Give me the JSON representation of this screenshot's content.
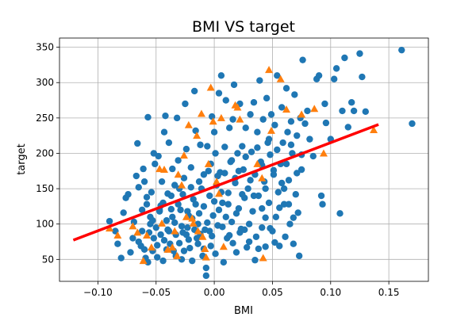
{
  "chart_data": {
    "type": "scatter",
    "title": "BMI VS target",
    "xlabel": "BMI",
    "ylabel": "target",
    "xlim": [
      -0.133,
      0.184
    ],
    "ylim": [
      19,
      363
    ],
    "xticks": [
      -0.1,
      -0.05,
      0.0,
      0.05,
      0.1,
      0.15
    ],
    "xtick_labels": [
      "−0.10",
      "−0.05",
      "0.00",
      "0.05",
      "0.10",
      "0.15"
    ],
    "yticks": [
      50,
      100,
      150,
      200,
      250,
      300,
      350
    ],
    "ytick_labels": [
      "50",
      "100",
      "150",
      "200",
      "250",
      "300",
      "350"
    ],
    "grid": true,
    "series": [
      {
        "marker": "circle",
        "color": "#1f77b4",
        "points": [
          [
            -0.09,
            104
          ],
          [
            -0.085,
            90
          ],
          [
            -0.083,
            72
          ],
          [
            -0.08,
            52
          ],
          [
            -0.078,
            116
          ],
          [
            -0.076,
            137
          ],
          [
            -0.074,
            142
          ],
          [
            -0.072,
            60
          ],
          [
            -0.07,
            80
          ],
          [
            -0.069,
            103
          ],
          [
            -0.067,
            168
          ],
          [
            -0.066,
            214
          ],
          [
            -0.065,
            152
          ],
          [
            -0.063,
            69
          ],
          [
            -0.062,
            90
          ],
          [
            -0.061,
            178
          ],
          [
            -0.06,
            160
          ],
          [
            -0.059,
            52
          ],
          [
            -0.058,
            128
          ],
          [
            -0.057,
            251
          ],
          [
            -0.056,
            88
          ],
          [
            -0.055,
            110
          ],
          [
            -0.054,
            145
          ],
          [
            -0.053,
            62
          ],
          [
            -0.052,
            200
          ],
          [
            -0.051,
            185
          ],
          [
            -0.05,
            95
          ],
          [
            -0.049,
            70
          ],
          [
            -0.048,
            196
          ],
          [
            -0.047,
            120
          ],
          [
            -0.046,
            85
          ],
          [
            -0.045,
            160
          ],
          [
            -0.044,
            48
          ],
          [
            -0.043,
            230
          ],
          [
            -0.042,
            253
          ],
          [
            -0.041,
            105
          ],
          [
            -0.04,
            92
          ],
          [
            -0.039,
            215
          ],
          [
            -0.038,
            72
          ],
          [
            -0.037,
            140
          ],
          [
            -0.036,
            178
          ],
          [
            -0.035,
            62
          ],
          [
            -0.034,
            102
          ],
          [
            -0.033,
            85
          ],
          [
            -0.032,
            250
          ],
          [
            -0.031,
            190
          ],
          [
            -0.03,
            150
          ],
          [
            -0.029,
            120
          ],
          [
            -0.028,
            50
          ],
          [
            -0.027,
            88
          ],
          [
            -0.026,
            165
          ],
          [
            -0.025,
            270
          ],
          [
            -0.024,
            206
          ],
          [
            -0.023,
            95
          ],
          [
            -0.022,
            112
          ],
          [
            -0.021,
            66
          ],
          [
            -0.02,
            180
          ],
          [
            -0.019,
            48
          ],
          [
            -0.018,
            135
          ],
          [
            -0.017,
            288
          ],
          [
            -0.016,
            232
          ],
          [
            -0.015,
            80
          ],
          [
            -0.014,
            100
          ],
          [
            -0.013,
            160
          ],
          [
            -0.012,
            212
          ],
          [
            -0.011,
            150
          ],
          [
            -0.01,
            55
          ],
          [
            -0.009,
            125
          ],
          [
            -0.008,
            92
          ],
          [
            -0.007,
            27
          ],
          [
            -0.006,
            210
          ],
          [
            -0.005,
            175
          ],
          [
            -0.004,
            140
          ],
          [
            -0.003,
            69
          ],
          [
            -0.002,
            252
          ],
          [
            -0.001,
            112
          ],
          [
            0.0,
            230
          ],
          [
            0.001,
            200
          ],
          [
            0.002,
            155
          ],
          [
            0.003,
            98
          ],
          [
            0.004,
            285
          ],
          [
            0.005,
            173
          ],
          [
            0.006,
            310
          ],
          [
            0.007,
            130
          ],
          [
            0.008,
            46
          ],
          [
            0.009,
            209
          ],
          [
            0.01,
            275
          ],
          [
            0.011,
            80
          ],
          [
            0.012,
            144
          ],
          [
            0.013,
            236
          ],
          [
            0.014,
            188
          ],
          [
            0.015,
            103
          ],
          [
            0.016,
            248
          ],
          [
            0.017,
            297
          ],
          [
            0.018,
            165
          ],
          [
            0.019,
            60
          ],
          [
            0.02,
            200
          ],
          [
            0.021,
            122
          ],
          [
            0.022,
            270
          ],
          [
            0.023,
            93
          ],
          [
            0.024,
            210
          ],
          [
            0.025,
            177
          ],
          [
            0.026,
            137
          ],
          [
            0.027,
            236
          ],
          [
            0.028,
            67
          ],
          [
            0.029,
            150
          ],
          [
            0.03,
            100
          ],
          [
            0.031,
            255
          ],
          [
            0.032,
            202
          ],
          [
            0.033,
            118
          ],
          [
            0.034,
            272
          ],
          [
            0.035,
            170
          ],
          [
            0.036,
            82
          ],
          [
            0.037,
            230
          ],
          [
            0.038,
            140
          ],
          [
            0.039,
            303
          ],
          [
            0.04,
            188
          ],
          [
            0.041,
            95
          ],
          [
            0.042,
            248
          ],
          [
            0.043,
            160
          ],
          [
            0.044,
            68
          ],
          [
            0.045,
            278
          ],
          [
            0.046,
            215
          ],
          [
            0.047,
            130
          ],
          [
            0.048,
            198
          ],
          [
            0.049,
            255
          ],
          [
            0.05,
            90
          ],
          [
            0.051,
            170
          ],
          [
            0.052,
            240
          ],
          [
            0.053,
            110
          ],
          [
            0.054,
            310
          ],
          [
            0.055,
            145
          ],
          [
            0.056,
            69
          ],
          [
            0.057,
            185
          ],
          [
            0.058,
            265
          ],
          [
            0.059,
            215
          ],
          [
            0.06,
            128
          ],
          [
            0.061,
            82
          ],
          [
            0.062,
            292
          ],
          [
            0.063,
            230
          ],
          [
            0.064,
            162
          ],
          [
            0.065,
            100
          ],
          [
            0.066,
            245
          ],
          [
            0.067,
            200
          ],
          [
            0.068,
            72
          ],
          [
            0.069,
            283
          ],
          [
            0.07,
            142
          ],
          [
            0.071,
            225
          ],
          [
            0.072,
            116
          ],
          [
            0.073,
            55
          ],
          [
            0.074,
            250
          ],
          [
            0.075,
            177
          ],
          [
            0.076,
            332
          ],
          [
            0.078,
            242
          ],
          [
            0.08,
            260
          ],
          [
            0.082,
            220
          ],
          [
            0.085,
            196
          ],
          [
            0.088,
            305
          ],
          [
            0.09,
            310
          ],
          [
            0.092,
            140
          ],
          [
            0.093,
            128
          ],
          [
            0.095,
            270
          ],
          [
            0.096,
            243
          ],
          [
            0.1,
            220
          ],
          [
            0.103,
            305
          ],
          [
            0.105,
            320
          ],
          [
            0.108,
            115
          ],
          [
            0.11,
            260
          ],
          [
            0.112,
            335
          ],
          [
            0.115,
            237
          ],
          [
            0.118,
            272
          ],
          [
            0.12,
            260
          ],
          [
            0.125,
            341
          ],
          [
            0.127,
            308
          ],
          [
            0.13,
            259
          ],
          [
            0.161,
            346
          ],
          [
            0.17,
            242
          ],
          [
            -0.065,
            75
          ],
          [
            -0.06,
            64
          ],
          [
            -0.057,
            46
          ],
          [
            -0.055,
            100
          ],
          [
            -0.052,
            80
          ],
          [
            -0.049,
            53
          ],
          [
            -0.046,
            126
          ],
          [
            -0.043,
            77
          ],
          [
            -0.041,
            64
          ],
          [
            -0.039,
            90
          ],
          [
            -0.036,
            110
          ],
          [
            -0.033,
            55
          ],
          [
            -0.03,
            73
          ],
          [
            -0.028,
            97
          ],
          [
            -0.026,
            62
          ],
          [
            -0.024,
            85
          ],
          [
            -0.022,
            78
          ],
          [
            -0.019,
            108
          ],
          [
            -0.017,
            92
          ],
          [
            -0.014,
            72
          ],
          [
            -0.012,
            86
          ],
          [
            -0.009,
            65
          ],
          [
            -0.007,
            38
          ],
          [
            -0.004,
            90
          ],
          [
            -0.002,
            83
          ],
          [
            0.001,
            58
          ],
          [
            0.004,
            120
          ],
          [
            0.007,
            96
          ],
          [
            0.01,
            110
          ],
          [
            0.013,
            84
          ],
          [
            0.016,
            73
          ],
          [
            0.019,
            115
          ],
          [
            0.022,
            88
          ],
          [
            0.026,
            92
          ],
          [
            0.03,
            75
          ],
          [
            0.035,
            49
          ],
          [
            0.038,
            65
          ],
          [
            0.041,
            122
          ],
          [
            0.044,
            109
          ],
          [
            0.048,
            94
          ],
          [
            0.052,
            74
          ],
          [
            0.056,
            123
          ],
          [
            0.06,
            150
          ],
          [
            0.064,
            128
          ],
          [
            0.068,
            109
          ],
          [
            -0.062,
            120
          ],
          [
            -0.058,
            138
          ],
          [
            -0.053,
            105
          ],
          [
            -0.047,
            118
          ],
          [
            -0.044,
            130
          ],
          [
            -0.04,
            143
          ],
          [
            -0.037,
            121
          ],
          [
            -0.034,
            155
          ],
          [
            -0.031,
            128
          ],
          [
            -0.027,
            142
          ],
          [
            -0.023,
            118
          ],
          [
            -0.02,
            152
          ],
          [
            -0.016,
            128
          ],
          [
            -0.013,
            115
          ],
          [
            -0.009,
            170
          ],
          [
            -0.006,
            102
          ],
          [
            -0.003,
            185
          ],
          [
            0.0,
            132
          ],
          [
            0.003,
            168
          ],
          [
            0.006,
            145
          ],
          [
            0.009,
            172
          ],
          [
            0.012,
            128
          ],
          [
            0.015,
            190
          ],
          [
            0.018,
            158
          ],
          [
            0.021,
            175
          ],
          [
            0.024,
            142
          ],
          [
            0.027,
            195
          ],
          [
            0.031,
            162
          ],
          [
            0.034,
            140
          ],
          [
            0.037,
            208
          ],
          [
            0.041,
            183
          ],
          [
            0.044,
            150
          ],
          [
            0.047,
            220
          ],
          [
            0.051,
            176
          ],
          [
            0.054,
            205
          ],
          [
            0.058,
            158
          ],
          [
            0.062,
            185
          ],
          [
            0.066,
            212
          ],
          [
            0.071,
            172
          ],
          [
            0.075,
            198
          ]
        ]
      },
      {
        "marker": "triangle",
        "color": "#ff7f0e",
        "points": [
          [
            -0.09,
            94
          ],
          [
            -0.083,
            84
          ],
          [
            -0.07,
            97
          ],
          [
            -0.066,
            88
          ],
          [
            -0.061,
            48
          ],
          [
            -0.058,
            84
          ],
          [
            -0.054,
            67
          ],
          [
            -0.047,
            178
          ],
          [
            -0.045,
            101
          ],
          [
            -0.043,
            177
          ],
          [
            -0.04,
            64
          ],
          [
            -0.036,
            67
          ],
          [
            -0.034,
            90
          ],
          [
            -0.032,
            55
          ],
          [
            -0.031,
            170
          ],
          [
            -0.028,
            155
          ],
          [
            -0.026,
            197
          ],
          [
            -0.024,
            110
          ],
          [
            -0.022,
            240
          ],
          [
            -0.019,
            108
          ],
          [
            -0.018,
            101
          ],
          [
            -0.015,
            225
          ],
          [
            -0.014,
            90
          ],
          [
            -0.011,
            256
          ],
          [
            -0.01,
            82
          ],
          [
            -0.008,
            65
          ],
          [
            -0.007,
            53
          ],
          [
            -0.005,
            185
          ],
          [
            -0.003,
            293
          ],
          [
            -0.001,
            245
          ],
          [
            0.002,
            160
          ],
          [
            0.004,
            143
          ],
          [
            0.006,
            250
          ],
          [
            0.008,
            68
          ],
          [
            0.018,
            268
          ],
          [
            0.02,
            265
          ],
          [
            0.022,
            248
          ],
          [
            0.037,
            185
          ],
          [
            0.041,
            165
          ],
          [
            0.042,
            52
          ],
          [
            0.047,
            318
          ],
          [
            0.049,
            232
          ],
          [
            0.057,
            305
          ],
          [
            0.062,
            262
          ],
          [
            0.075,
            255
          ],
          [
            0.086,
            263
          ],
          [
            0.094,
            200
          ],
          [
            0.137,
            233
          ]
        ]
      }
    ],
    "regression_line": {
      "color": "#ff0000",
      "x": [
        -0.12,
        0.14
      ],
      "y": [
        78,
        240
      ]
    }
  }
}
